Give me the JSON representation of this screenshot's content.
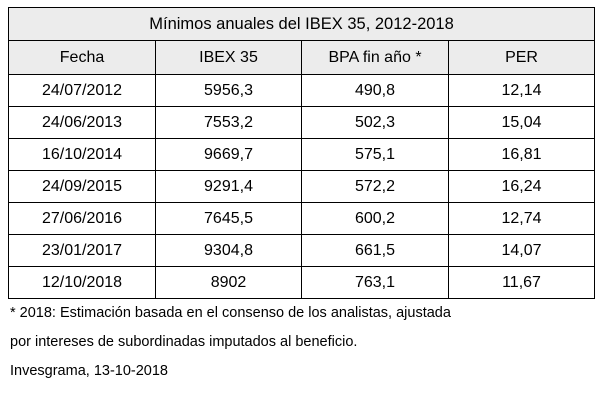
{
  "table": {
    "title": "Mínimos anuales del IBEX 35, 2012-2018",
    "headers": [
      "Fecha",
      "IBEX 35",
      "BPA fin año *",
      "PER"
    ],
    "rows": [
      [
        "24/07/2012",
        "5956,3",
        "490,8",
        "12,14"
      ],
      [
        "24/06/2013",
        "7553,2",
        "502,3",
        "15,04"
      ],
      [
        "16/10/2014",
        "9669,7",
        "575,1",
        "16,81"
      ],
      [
        "24/09/2015",
        "9291,4",
        "572,2",
        "16,24"
      ],
      [
        "27/06/2016",
        "7645,5",
        "600,2",
        "12,74"
      ],
      [
        "23/01/2017",
        "9304,8",
        "661,5",
        "14,07"
      ],
      [
        "12/10/2018",
        "8902",
        "763,1",
        "11,67"
      ]
    ]
  },
  "notes": {
    "line1": "* 2018: Estimación basada en el consenso de los analistas, ajustada",
    "line2": "por intereses de subordinadas imputados al beneficio.",
    "source": "Invesgrama, 13-10-2018"
  }
}
